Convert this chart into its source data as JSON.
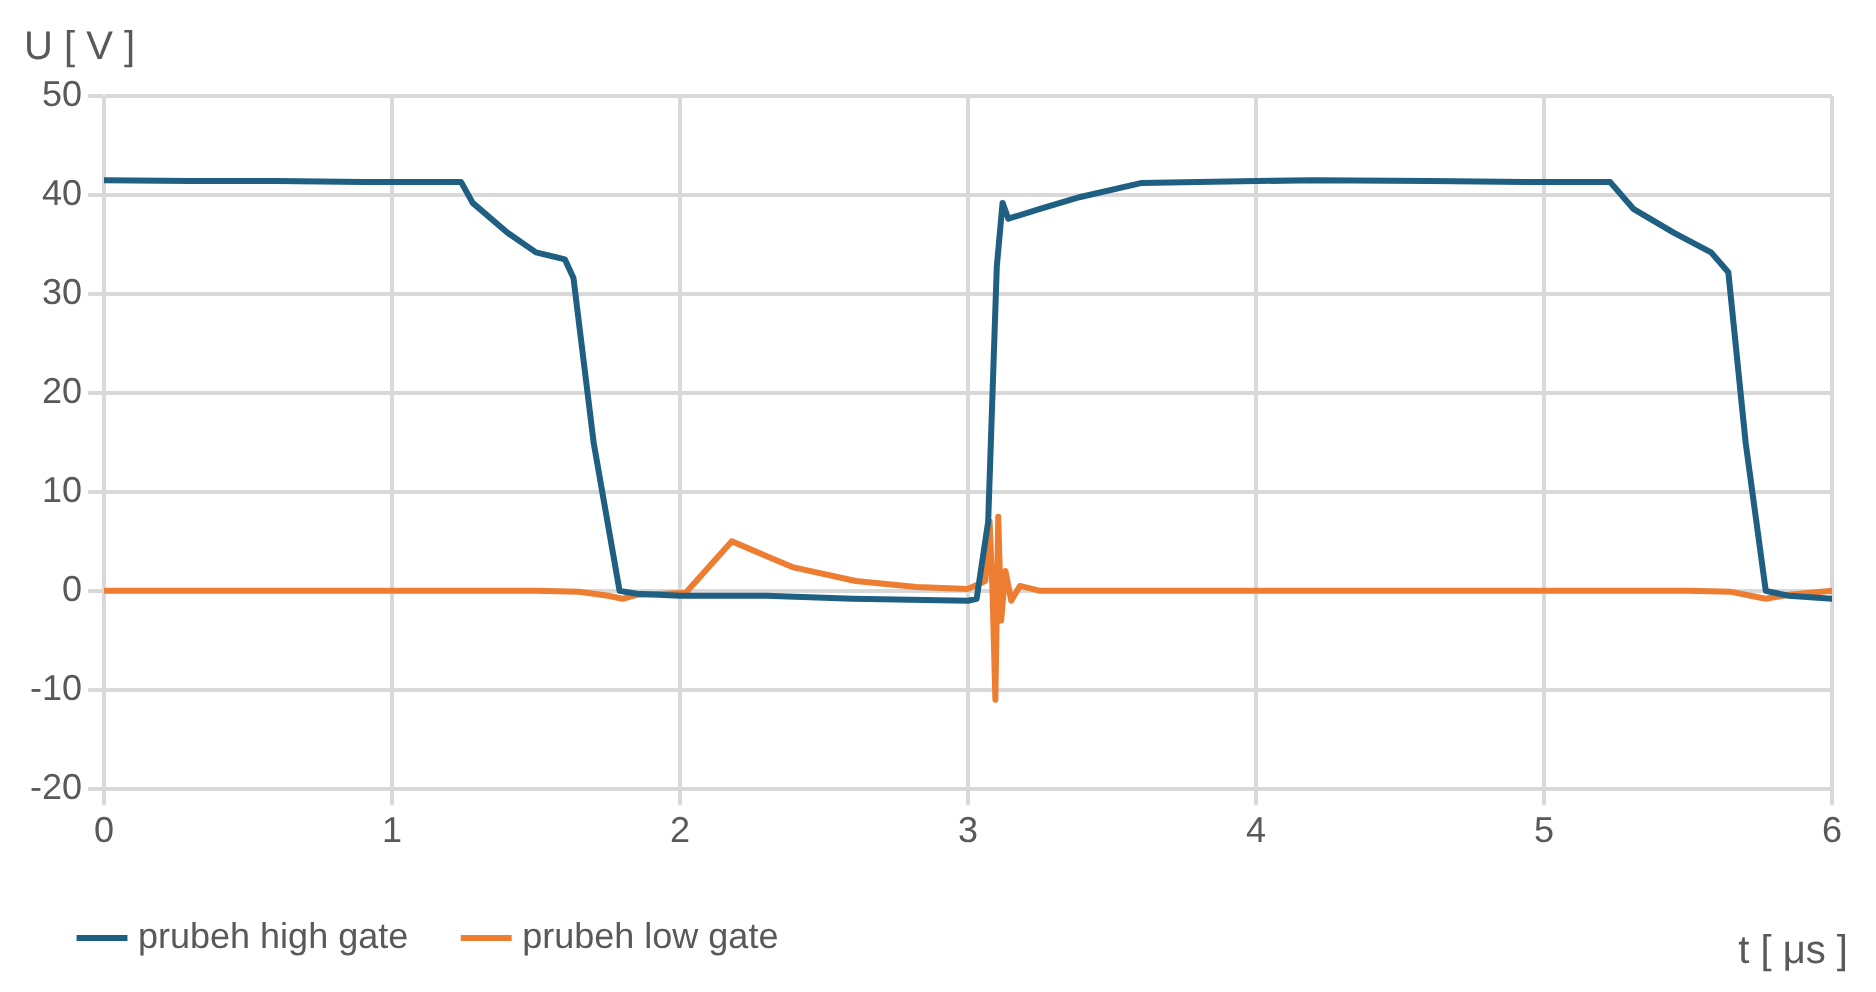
{
  "chart_data": {
    "type": "line",
    "xlabel": "t [ μs ]",
    "ylabel": "U [ V ]",
    "xlim": [
      0,
      6
    ],
    "xticks": [
      0,
      1,
      2,
      3,
      4,
      5,
      6
    ],
    "ylim": [
      -20,
      50
    ],
    "yticks": [
      -20,
      -10,
      0,
      10,
      20,
      30,
      40,
      50
    ],
    "grid": true,
    "legend": "bottom",
    "marker": "none",
    "line_style": "solid",
    "series": [
      {
        "name": "prubeh high gate",
        "color": "#1f5f82",
        "x": [
          0,
          0.3,
          0.6,
          0.9,
          1.1,
          1.24,
          1.28,
          1.4,
          1.5,
          1.6,
          1.63,
          1.7,
          1.79,
          1.85,
          2.0,
          2.3,
          2.6,
          3.0,
          3.03,
          3.07,
          3.1,
          3.12,
          3.14,
          3.25,
          3.39,
          3.6,
          3.8,
          4.2,
          4.6,
          5.0,
          5.23,
          5.31,
          5.45,
          5.58,
          5.64,
          5.7,
          5.77,
          5.85,
          6.0
        ],
        "values": [
          41.5,
          41.4,
          41.4,
          41.3,
          41.3,
          41.3,
          39.2,
          36.2,
          34.2,
          33.5,
          31.6,
          15,
          0,
          -0.3,
          -0.5,
          -0.5,
          -0.8,
          -1,
          -0.8,
          7,
          32.8,
          39.2,
          37.6,
          38.6,
          39.8,
          41.2,
          41.3,
          41.5,
          41.4,
          41.3,
          41.3,
          38.6,
          36.2,
          34.2,
          32.2,
          15,
          0,
          -0.5,
          -0.8
        ]
      },
      {
        "name": "prubeh low gate",
        "color": "#ed7d31",
        "x": [
          0,
          0.5,
          1.0,
          1.5,
          1.65,
          1.75,
          1.8,
          1.85,
          1.95,
          2.02,
          2.18,
          2.39,
          2.61,
          2.82,
          3.0,
          3.06,
          3.075,
          3.085,
          3.095,
          3.105,
          3.115,
          3.13,
          3.15,
          3.18,
          3.25,
          3.5,
          4.0,
          4.5,
          5.0,
          5.5,
          5.65,
          5.77,
          5.85,
          6.0
        ],
        "values": [
          0,
          0,
          0,
          0,
          -0.1,
          -0.5,
          -0.8,
          -0.4,
          -0.3,
          -0.2,
          5.0,
          2.4,
          1.0,
          0.4,
          0.2,
          1,
          7,
          0,
          -11,
          7.5,
          -3,
          2,
          -1,
          0.5,
          0,
          0,
          0,
          0,
          0,
          0,
          -0.1,
          -0.8,
          -0.4,
          0
        ]
      }
    ]
  }
}
